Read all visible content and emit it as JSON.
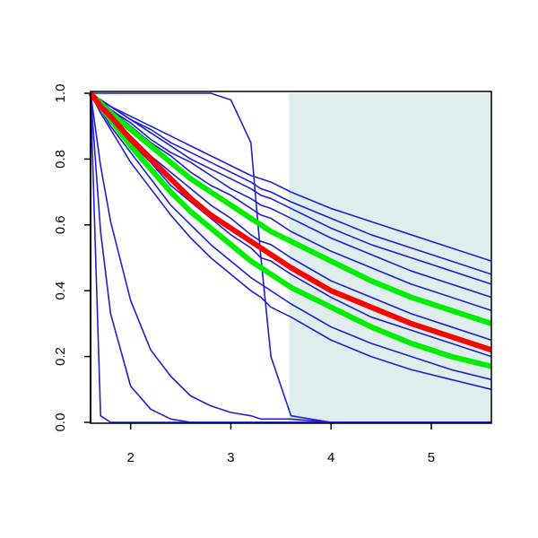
{
  "chart_data": {
    "type": "line",
    "x": [
      1.6,
      1.7,
      1.8,
      2.0,
      2.2,
      2.4,
      2.6,
      2.8,
      3.0,
      3.2,
      3.3,
      3.4,
      3.6,
      4.0,
      4.4,
      4.8,
      5.2,
      5.6
    ],
    "xlim": [
      1.6,
      5.6
    ],
    "ylim": [
      0,
      1
    ],
    "xticks": [
      2,
      3,
      4,
      5
    ],
    "yticks": [
      {
        "value": 0,
        "label": "0.0"
      },
      0.2,
      0.4,
      0.6,
      0.8,
      {
        "value": 1,
        "label": "1.0"
      }
    ],
    "shaded_region": {
      "xlim": [
        3.58,
        5.6
      ],
      "color": "#e0eded"
    },
    "series": [
      {
        "color": "#1f1fd0",
        "width": 1.6,
        "values": [
          1,
          0.98,
          0.96,
          0.93,
          0.9,
          0.87,
          0.84,
          0.81,
          0.78,
          0.75,
          0.74,
          0.73,
          0.7,
          0.65,
          0.61,
          0.57,
          0.53,
          0.49
        ]
      },
      {
        "color": "#1f1fd0",
        "width": 1.6,
        "values": [
          1,
          0.98,
          0.96,
          0.92,
          0.89,
          0.85,
          0.82,
          0.79,
          0.76,
          0.73,
          0.71,
          0.7,
          0.67,
          0.62,
          0.57,
          0.53,
          0.49,
          0.45
        ]
      },
      {
        "color": "#1f1fd0",
        "width": 1.6,
        "values": [
          1,
          0.98,
          0.96,
          0.92,
          0.88,
          0.84,
          0.8,
          0.77,
          0.74,
          0.71,
          0.69,
          0.68,
          0.65,
          0.59,
          0.54,
          0.5,
          0.46,
          0.42
        ]
      },
      {
        "color": "#1f1fd0",
        "width": 1.6,
        "values": [
          1,
          0.98,
          0.95,
          0.91,
          0.86,
          0.82,
          0.79,
          0.75,
          0.71,
          0.68,
          0.66,
          0.65,
          0.62,
          0.56,
          0.51,
          0.46,
          0.42,
          0.38
        ]
      },
      {
        "color": "#1f1fd0",
        "width": 1.6,
        "values": [
          1,
          0.97,
          0.95,
          0.9,
          0.85,
          0.81,
          0.76,
          0.72,
          0.69,
          0.65,
          0.63,
          0.62,
          0.58,
          0.52,
          0.47,
          0.42,
          0.38,
          0.34
        ]
      },
      {
        "color": "#1f1fd0",
        "width": 1.6,
        "values": [
          1,
          0.97,
          0.93,
          0.87,
          0.81,
          0.76,
          0.71,
          0.66,
          0.62,
          0.57,
          0.55,
          0.54,
          0.5,
          0.43,
          0.38,
          0.33,
          0.29,
          0.25
        ]
      },
      {
        "color": "#1f1fd0",
        "width": 1.6,
        "values": [
          1,
          0.96,
          0.92,
          0.85,
          0.79,
          0.72,
          0.67,
          0.62,
          0.57,
          0.53,
          0.5,
          0.49,
          0.45,
          0.38,
          0.32,
          0.28,
          0.24,
          0.2
        ]
      },
      {
        "color": "#1f1fd0",
        "width": 1.6,
        "values": [
          1,
          0.95,
          0.9,
          0.82,
          0.74,
          0.66,
          0.6,
          0.54,
          0.49,
          0.44,
          0.42,
          0.4,
          0.36,
          0.29,
          0.24,
          0.2,
          0.16,
          0.13
        ]
      },
      {
        "color": "#1f1fd0",
        "width": 1.6,
        "values": [
          1,
          0.94,
          0.89,
          0.79,
          0.71,
          0.63,
          0.56,
          0.5,
          0.45,
          0.4,
          0.38,
          0.35,
          0.32,
          0.25,
          0.2,
          0.16,
          0.13,
          0.1
        ]
      },
      {
        "color": "#1f1fd0",
        "width": 1.6,
        "values": [
          1,
          0.78,
          0.61,
          0.37,
          0.22,
          0.14,
          0.08,
          0.05,
          0.03,
          0.02,
          0.01,
          0.01,
          0.01,
          0,
          0,
          0,
          0,
          0
        ]
      },
      {
        "color": "#1f1fd0",
        "width": 1.6,
        "values": [
          1,
          0.58,
          0.33,
          0.11,
          0.04,
          0.01,
          0,
          0,
          0,
          0,
          0,
          0,
          0,
          0,
          0,
          0,
          0,
          0
        ]
      },
      {
        "color": "#1f1fd0",
        "width": 1.6,
        "values": [
          1,
          0.02,
          0,
          0,
          0,
          0,
          0,
          0,
          0,
          0,
          0,
          0,
          0,
          0,
          0,
          0,
          0,
          0
        ]
      },
      {
        "color": "#1f1fd0",
        "width": 1.6,
        "values": [
          1,
          1,
          1,
          1,
          1,
          1,
          1,
          1,
          0.98,
          0.85,
          0.5,
          0.2,
          0.02,
          0,
          0,
          0,
          0,
          0
        ]
      },
      {
        "color": "#00ee00",
        "width": 6,
        "values": [
          1,
          0.97,
          0.94,
          0.89,
          0.84,
          0.79,
          0.74,
          0.7,
          0.66,
          0.62,
          0.6,
          0.58,
          0.55,
          0.49,
          0.43,
          0.38,
          0.34,
          0.3
        ]
      },
      {
        "color": "#00ee00",
        "width": 6,
        "values": [
          1,
          0.96,
          0.92,
          0.84,
          0.77,
          0.7,
          0.64,
          0.59,
          0.54,
          0.49,
          0.47,
          0.45,
          0.41,
          0.35,
          0.29,
          0.24,
          0.2,
          0.17
        ]
      },
      {
        "color": "#ff0000",
        "width": 6,
        "values": [
          1,
          0.96,
          0.93,
          0.86,
          0.8,
          0.74,
          0.68,
          0.63,
          0.59,
          0.55,
          0.53,
          0.51,
          0.47,
          0.4,
          0.35,
          0.3,
          0.26,
          0.22
        ]
      }
    ]
  }
}
